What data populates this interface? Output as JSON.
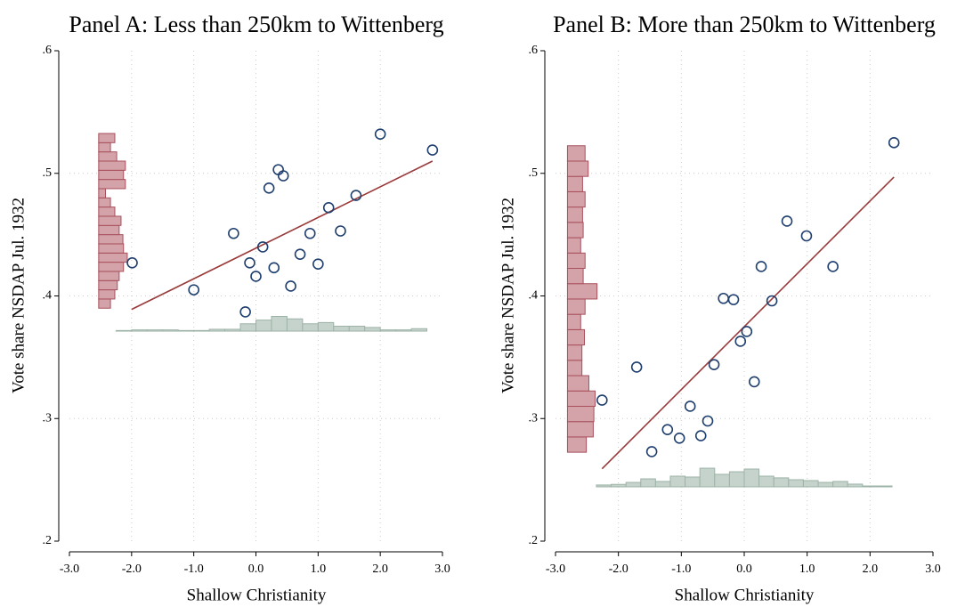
{
  "chart_data": [
    {
      "type": "scatter",
      "title": "Panel A: Less than 250km to Wittenberg",
      "x_label": "Shallow Christianity",
      "y_label": "Vote share NSDAP Jul. 1932",
      "x": [
        -1.99,
        -1.0,
        -0.36,
        -0.17,
        -0.1,
        0.0,
        0.11,
        0.21,
        0.29,
        0.36,
        0.44,
        0.56,
        0.71,
        0.87,
        1.0,
        1.17,
        1.36,
        1.61,
        2.0,
        2.84
      ],
      "values": [
        0.427,
        0.405,
        0.451,
        0.387,
        0.427,
        0.416,
        0.44,
        0.488,
        0.423,
        0.503,
        0.498,
        0.408,
        0.434,
        0.451,
        0.426,
        0.472,
        0.453,
        0.482,
        0.532,
        0.519
      ],
      "marker_color": "#1f3f6e",
      "fit_line": {
        "x": [
          -2.0,
          2.84
        ],
        "values": [
          0.389,
          0.51
        ],
        "color": "#9b3a3a"
      },
      "x_hist": {
        "bins": [
          -2.25,
          -2.0,
          -1.75,
          -1.5,
          -1.25,
          -1.0,
          -0.75,
          -0.5,
          -0.25,
          0.0,
          0.25,
          0.5,
          0.75,
          1.0,
          1.25,
          1.5,
          1.75,
          2.0,
          2.25,
          2.5,
          2.75
        ],
        "heights": [
          0.0005,
          0.001,
          0.001,
          0.001,
          0.0005,
          0.0005,
          0.0015,
          0.0015,
          0.006,
          0.009,
          0.012,
          0.01,
          0.006,
          0.007,
          0.004,
          0.004,
          0.003,
          0.001,
          0.001,
          0.002
        ],
        "base": 0.3713,
        "color": "#c5d3cc",
        "edge_color": "#9db3a7"
      },
      "y_hist": {
        "bins": [
          0.39,
          0.3975,
          0.405,
          0.4125,
          0.42,
          0.4275,
          0.435,
          0.4425,
          0.45,
          0.4575,
          0.465,
          0.4725,
          0.48,
          0.4875,
          0.495,
          0.5025,
          0.51,
          0.5175,
          0.525,
          0.5325
        ],
        "heights": [
          0.19,
          0.26,
          0.3,
          0.33,
          0.4,
          0.46,
          0.4,
          0.39,
          0.33,
          0.36,
          0.26,
          0.19,
          0.11,
          0.43,
          0.4,
          0.43,
          0.29,
          0.19,
          0.26
        ],
        "base": -2.53,
        "color": "#d4a3a9",
        "edge_color": "#a8505c"
      },
      "xlim": [
        -3,
        3
      ],
      "ylim": [
        0.2,
        0.6
      ],
      "xticks": [
        {
          "value": -3,
          "label": "-3.0"
        },
        {
          "value": -2,
          "label": "-2.0"
        },
        {
          "value": -1,
          "label": "-1.0"
        },
        {
          "value": 0,
          "label": "0.0"
        },
        {
          "value": 1,
          "label": "1.0"
        },
        {
          "value": 2,
          "label": "2.0"
        },
        {
          "value": 3,
          "label": "3.0"
        }
      ],
      "yticks": [
        {
          "value": 0.2,
          "label": ".2"
        },
        {
          "value": 0.3,
          "label": ".3"
        },
        {
          "value": 0.4,
          "label": ".4"
        },
        {
          "value": 0.5,
          "label": ".5"
        },
        {
          "value": 0.6,
          "label": ".6"
        }
      ],
      "grid": true
    },
    {
      "type": "scatter",
      "title": "Panel B: More than 250km to Wittenberg",
      "x_label": "Shallow Christianity",
      "y_label": "Vote share NSDAP Jul. 1932",
      "x": [
        -2.26,
        -1.71,
        -1.47,
        -1.22,
        -1.03,
        -0.86,
        -0.69,
        -0.58,
        -0.48,
        -0.33,
        -0.17,
        -0.06,
        0.04,
        0.16,
        0.27,
        0.44,
        0.68,
        0.99,
        1.41,
        2.38
      ],
      "values": [
        0.315,
        0.342,
        0.273,
        0.291,
        0.284,
        0.31,
        0.286,
        0.298,
        0.344,
        0.398,
        0.397,
        0.363,
        0.371,
        0.33,
        0.424,
        0.396,
        0.461,
        0.449,
        0.424,
        0.525
      ],
      "marker_color": "#1f3f6e",
      "fit_line": {
        "x": [
          -2.26,
          2.38
        ],
        "values": [
          0.259,
          0.497
        ],
        "color": "#9b3a3a"
      },
      "x_hist": {
        "bins": [
          -2.35,
          -2.115,
          -1.88,
          -1.645,
          -1.41,
          -1.175,
          -0.94,
          -0.705,
          -0.47,
          -0.235,
          0.0,
          0.235,
          0.47,
          0.705,
          0.94,
          1.175,
          1.41,
          1.645,
          1.88,
          2.115,
          2.35
        ],
        "heights": [
          0.0015,
          0.002,
          0.0036,
          0.0065,
          0.0044,
          0.0087,
          0.008,
          0.0152,
          0.0102,
          0.0123,
          0.0145,
          0.0087,
          0.0073,
          0.0058,
          0.0051,
          0.0036,
          0.0044,
          0.0022,
          0.0007,
          0.0007
        ],
        "base": 0.2443,
        "color": "#c5d3cc",
        "edge_color": "#9db3a7"
      },
      "y_hist": {
        "bins": [
          0.2725,
          0.285,
          0.2975,
          0.31,
          0.3225,
          0.335,
          0.3475,
          0.36,
          0.3725,
          0.385,
          0.3975,
          0.41,
          0.4225,
          0.435,
          0.4475,
          0.46,
          0.4725,
          0.485,
          0.4975,
          0.51,
          0.5225
        ],
        "heights": [
          0.3,
          0.41,
          0.42,
          0.44,
          0.34,
          0.23,
          0.23,
          0.27,
          0.21,
          0.28,
          0.47,
          0.25,
          0.28,
          0.21,
          0.25,
          0.24,
          0.28,
          0.24,
          0.33,
          0.28
        ],
        "base": -2.81,
        "color": "#d4a3a9",
        "edge_color": "#a8505c"
      },
      "xlim": [
        -3,
        3
      ],
      "ylim": [
        0.2,
        0.6
      ],
      "xticks": [
        {
          "value": -3,
          "label": "-3.0"
        },
        {
          "value": -2,
          "label": "-2.0"
        },
        {
          "value": -1,
          "label": "-1.0"
        },
        {
          "value": 0,
          "label": "0.0"
        },
        {
          "value": 1,
          "label": "1.0"
        },
        {
          "value": 2,
          "label": "2.0"
        },
        {
          "value": 3,
          "label": "3.0"
        }
      ],
      "yticks": [
        {
          "value": 0.2,
          "label": ".2"
        },
        {
          "value": 0.3,
          "label": ".3"
        },
        {
          "value": 0.4,
          "label": ".4"
        },
        {
          "value": 0.5,
          "label": ".5"
        },
        {
          "value": 0.6,
          "label": ".6"
        }
      ],
      "grid": true
    }
  ]
}
